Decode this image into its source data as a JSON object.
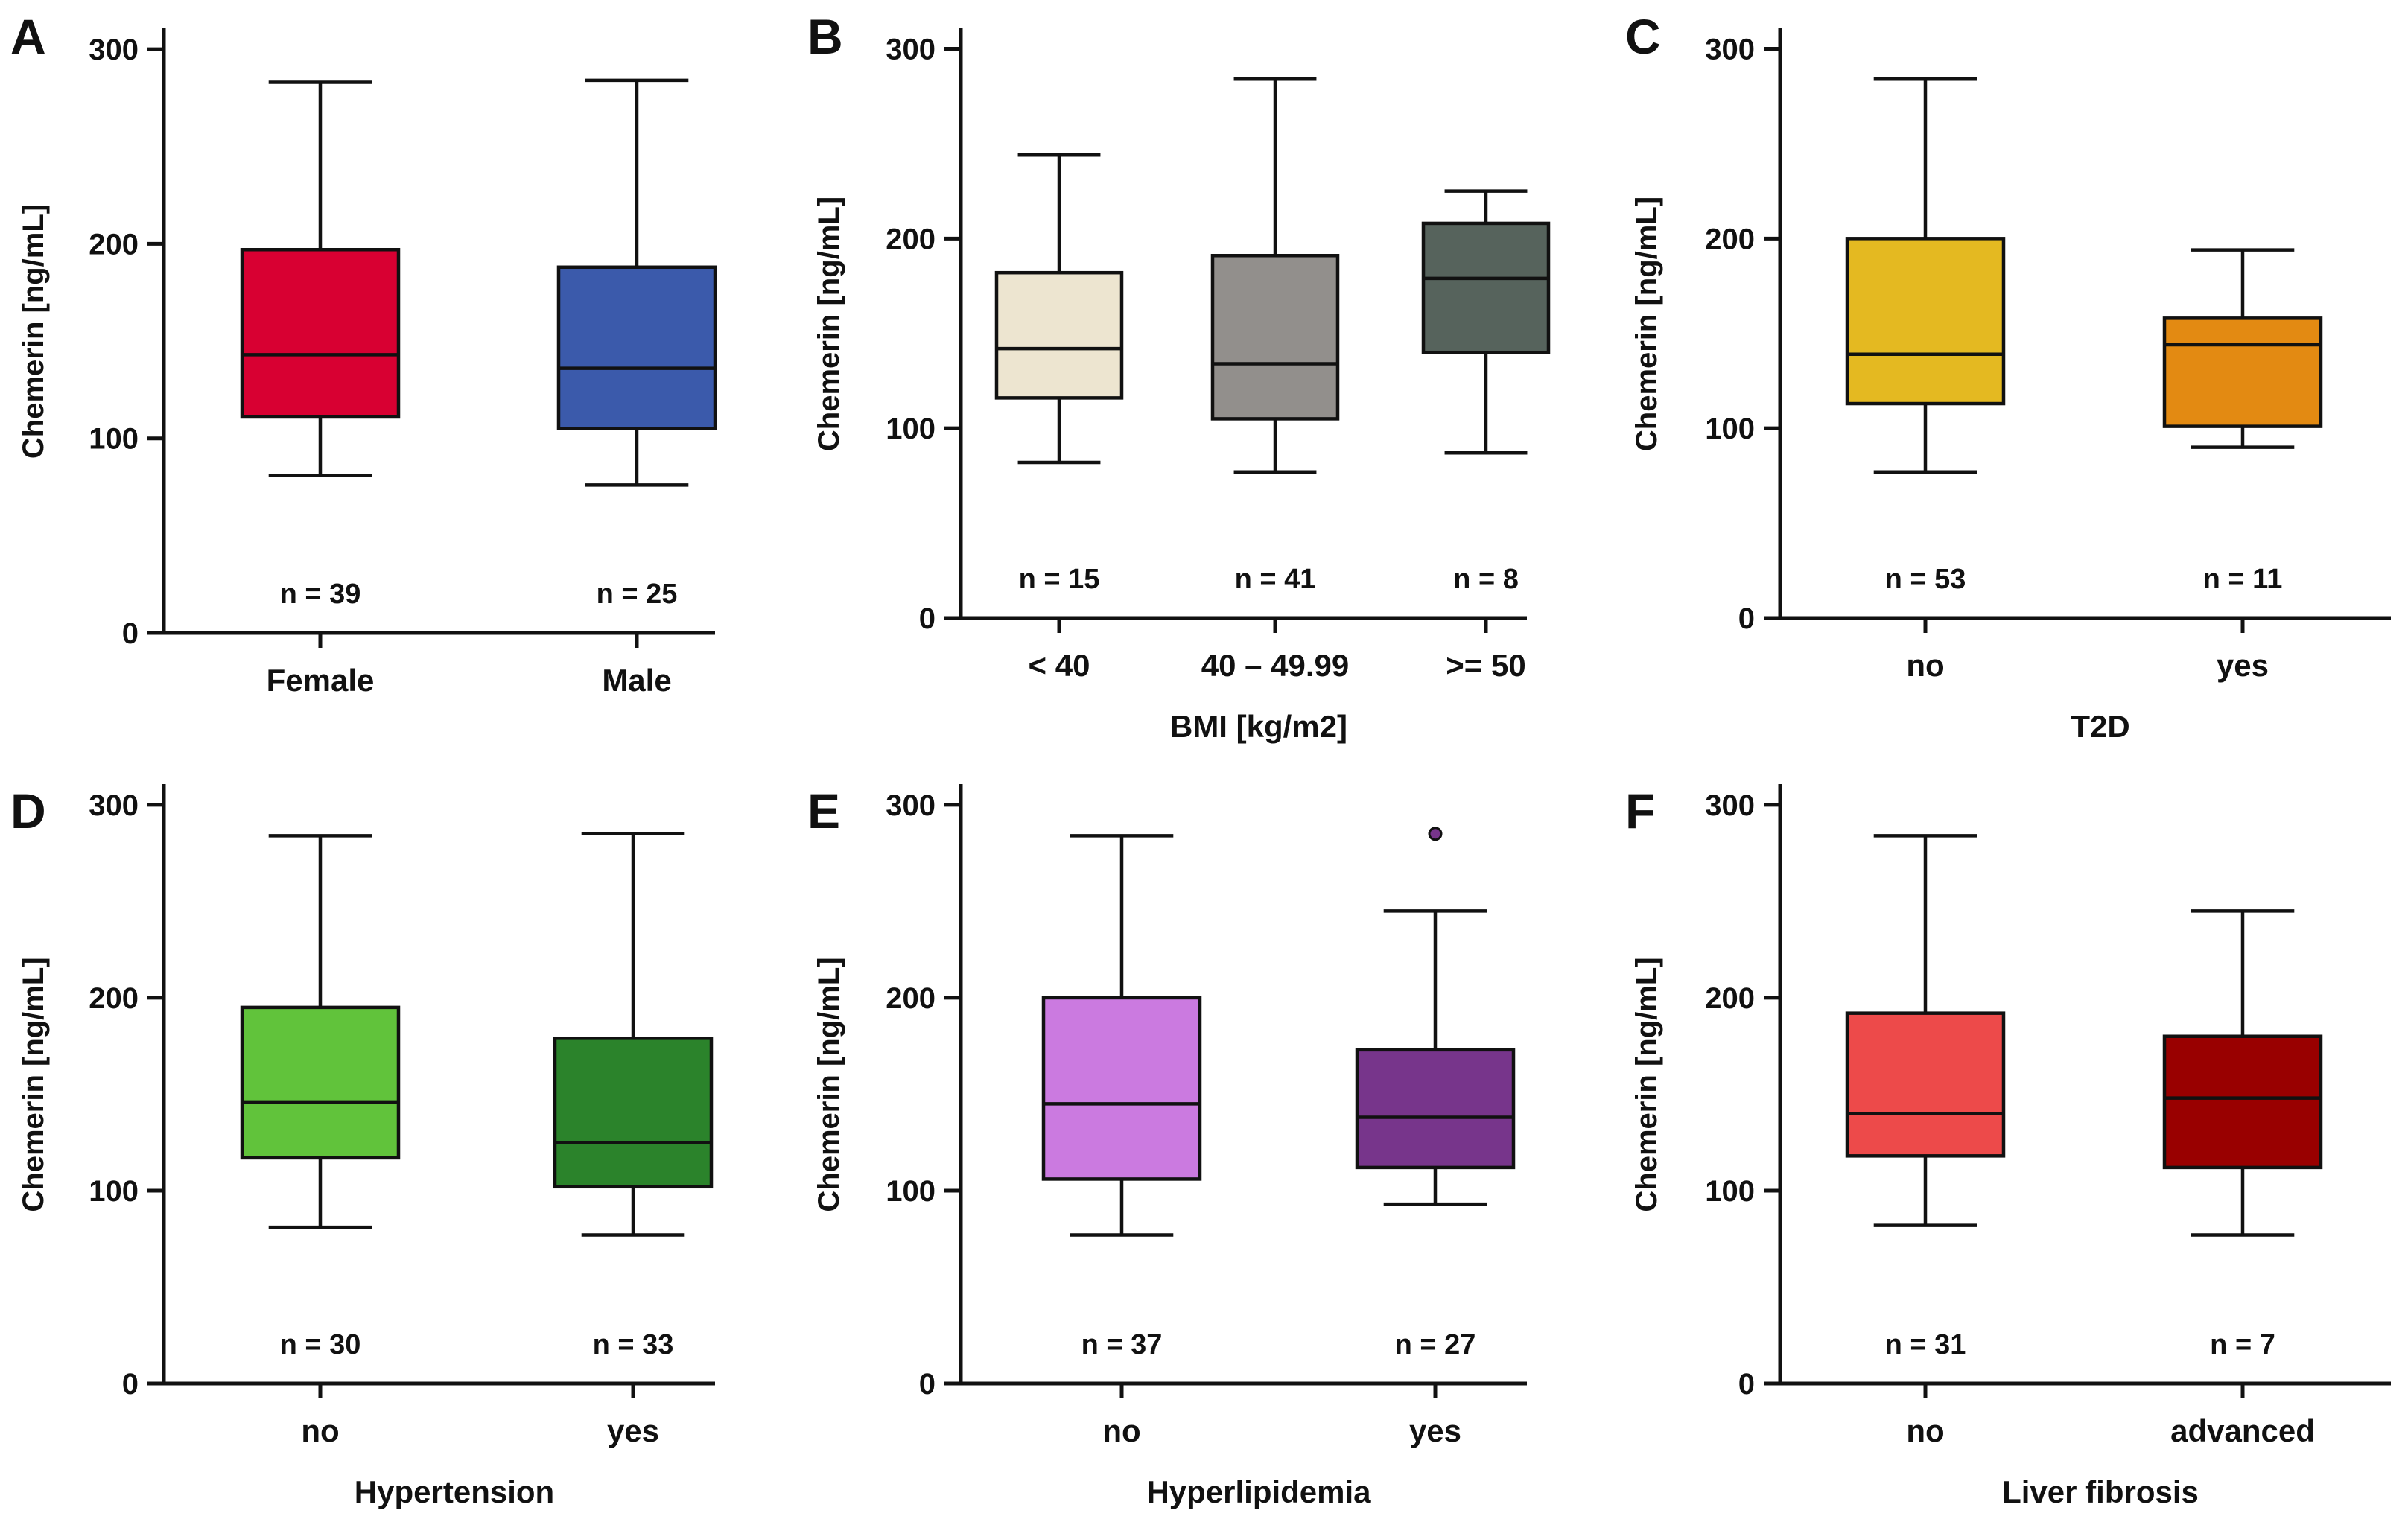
{
  "chart_data": [
    {
      "type": "box",
      "panel": "A",
      "ylabel": "Chemerin [ng/mL]",
      "xlabel": "",
      "ylim": [
        0,
        310
      ],
      "yticks": [
        0,
        100,
        200,
        300
      ],
      "categories": [
        "Female",
        "Male"
      ],
      "n_labels": [
        "n = 39",
        "n = 25"
      ],
      "boxes": [
        {
          "min": 81,
          "q1": 111,
          "median": 143,
          "q3": 197,
          "max": 283,
          "color": "#d80032",
          "outliers": []
        },
        {
          "min": 76,
          "q1": 105,
          "median": 136,
          "q3": 188,
          "max": 284,
          "color": "#3b5aab",
          "outliers": []
        }
      ]
    },
    {
      "type": "box",
      "panel": "B",
      "ylabel": "Chemerin [ng/mL]",
      "xlabel": "BMI [kg/m2]",
      "ylim": [
        0,
        310
      ],
      "yticks": [
        0,
        100,
        200,
        300
      ],
      "categories": [
        "< 40",
        "40 – 49.99",
        ">= 50"
      ],
      "n_labels": [
        "n = 15",
        "n = 41",
        "n = 8"
      ],
      "boxes": [
        {
          "min": 82,
          "q1": 116,
          "median": 142,
          "q3": 182,
          "max": 244,
          "color": "#ede5d0",
          "outliers": []
        },
        {
          "min": 77,
          "q1": 105,
          "median": 134,
          "q3": 191,
          "max": 284,
          "color": "#928f8c",
          "outliers": []
        },
        {
          "min": 87,
          "q1": 140,
          "median": 179,
          "q3": 208,
          "max": 225,
          "color": "#56635c",
          "outliers": []
        }
      ]
    },
    {
      "type": "box",
      "panel": "C",
      "ylabel": "Chemerin [ng/mL]",
      "xlabel": "T2D",
      "ylim": [
        0,
        310
      ],
      "yticks": [
        0,
        100,
        200,
        300
      ],
      "categories": [
        "no",
        "yes"
      ],
      "n_labels": [
        "n = 53",
        "n = 11"
      ],
      "boxes": [
        {
          "min": 77,
          "q1": 113,
          "median": 139,
          "q3": 200,
          "max": 284,
          "color": "#e4b921",
          "outliers": []
        },
        {
          "min": 90,
          "q1": 101,
          "median": 144,
          "q3": 158,
          "max": 194,
          "color": "#e38a12",
          "outliers": []
        }
      ]
    },
    {
      "type": "box",
      "panel": "D",
      "ylabel": "Chemerin [ng/mL]",
      "xlabel": "Hypertension",
      "ylim": [
        0,
        310
      ],
      "yticks": [
        0,
        100,
        200,
        300
      ],
      "categories": [
        "no",
        "yes"
      ],
      "n_labels": [
        "n = 30",
        "n = 33"
      ],
      "boxes": [
        {
          "min": 81,
          "q1": 117,
          "median": 146,
          "q3": 195,
          "max": 284,
          "color": "#61c33b",
          "outliers": []
        },
        {
          "min": 77,
          "q1": 102,
          "median": 125,
          "q3": 179,
          "max": 285,
          "color": "#2b832b",
          "outliers": []
        }
      ]
    },
    {
      "type": "box",
      "panel": "E",
      "ylabel": "Chemerin [ng/mL]",
      "xlabel": "Hyperlipidemia",
      "ylim": [
        0,
        310
      ],
      "yticks": [
        0,
        100,
        200,
        300
      ],
      "categories": [
        "no",
        "yes"
      ],
      "n_labels": [
        "n = 37",
        "n = 27"
      ],
      "boxes": [
        {
          "min": 77,
          "q1": 106,
          "median": 145,
          "q3": 200,
          "max": 284,
          "color": "#cb7ae0",
          "outliers": []
        },
        {
          "min": 93,
          "q1": 112,
          "median": 138,
          "q3": 173,
          "max": 245,
          "color": "#77358b",
          "outliers": [
            285
          ]
        }
      ]
    },
    {
      "type": "box",
      "panel": "F",
      "ylabel": "Chemerin [ng/mL]",
      "xlabel": "Liver fibrosis",
      "ylim": [
        0,
        310
      ],
      "yticks": [
        0,
        100,
        200,
        300
      ],
      "categories": [
        "no",
        "advanced"
      ],
      "n_labels": [
        "n = 31",
        "n = 7"
      ],
      "boxes": [
        {
          "min": 82,
          "q1": 118,
          "median": 140,
          "q3": 192,
          "max": 284,
          "color": "#ed4a4a",
          "outliers": []
        },
        {
          "min": 77,
          "q1": 112,
          "median": 148,
          "q3": 180,
          "max": 245,
          "color": "#990000",
          "outliers": []
        }
      ]
    }
  ]
}
